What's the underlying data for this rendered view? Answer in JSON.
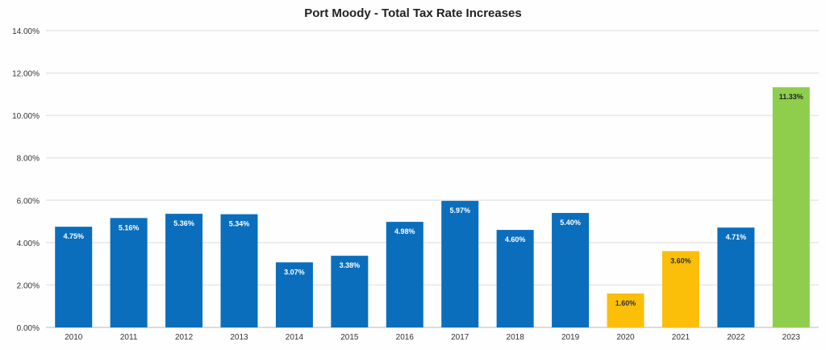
{
  "chart_data": {
    "type": "bar",
    "title": "Port Moody - Total Tax Rate Increases",
    "xlabel": "",
    "ylabel": "",
    "ylim": [
      0,
      14
    ],
    "yticks": [
      "0.00%",
      "2.00%",
      "4.00%",
      "6.00%",
      "8.00%",
      "10.00%",
      "12.00%",
      "14.00%"
    ],
    "grid": true,
    "categories": [
      "2010",
      "2011",
      "2012",
      "2013",
      "2014",
      "2015",
      "2016",
      "2017",
      "2018",
      "2019",
      "2020",
      "2021",
      "2022",
      "2023"
    ],
    "values": [
      4.75,
      5.16,
      5.36,
      5.34,
      3.07,
      3.38,
      4.98,
      5.97,
      4.6,
      5.4,
      1.6,
      3.6,
      4.71,
      11.33
    ],
    "labels": [
      "4.75%",
      "5.16%",
      "5.36%",
      "5.34%",
      "3.07%",
      "3.38%",
      "4.98%",
      "5.97%",
      "4.60%",
      "5.40%",
      "1.60%",
      "3.60%",
      "4.71%",
      "11.33%"
    ],
    "colors": [
      "#0a6ebd",
      "#0a6ebd",
      "#0a6ebd",
      "#0a6ebd",
      "#0a6ebd",
      "#0a6ebd",
      "#0a6ebd",
      "#0a6ebd",
      "#0a6ebd",
      "#0a6ebd",
      "#fbbf0a",
      "#fbbf0a",
      "#0a6ebd",
      "#8fce4c"
    ],
    "label_colors": [
      "#ffffff",
      "#ffffff",
      "#ffffff",
      "#ffffff",
      "#ffffff",
      "#ffffff",
      "#ffffff",
      "#ffffff",
      "#ffffff",
      "#ffffff",
      "#333333",
      "#333333",
      "#ffffff",
      "#222222"
    ]
  }
}
